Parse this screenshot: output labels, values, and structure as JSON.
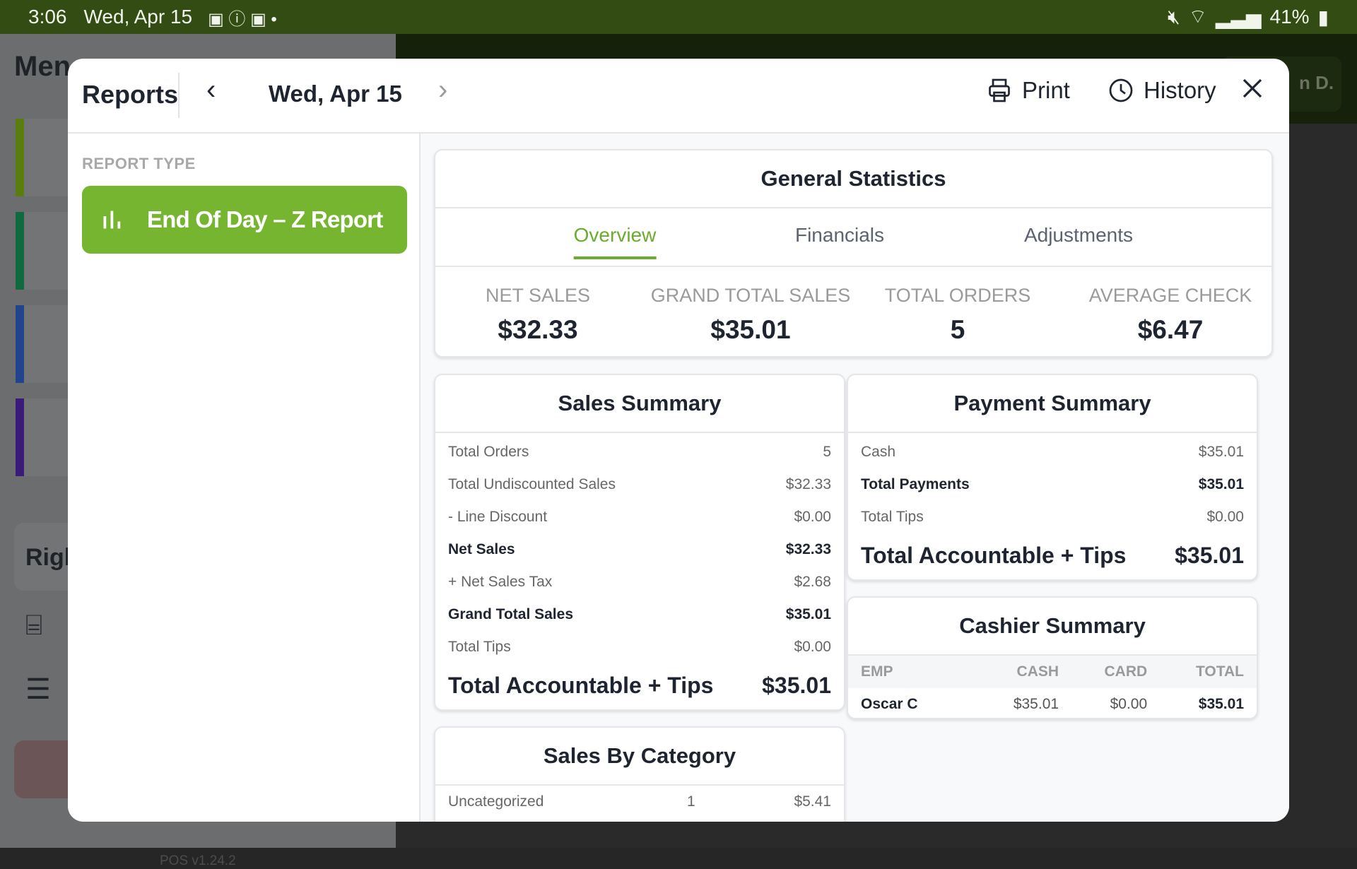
{
  "status_bar": {
    "time": "3:06",
    "date": "Wed, Apr 15",
    "battery": "41%"
  },
  "background": {
    "menu_title": "Men",
    "right_card": "Righ",
    "version": "POS v1.24.2",
    "user": "n D."
  },
  "header": {
    "title": "Reports",
    "date": "Wed, Apr 15",
    "print_label": "Print",
    "history_label": "History"
  },
  "sidebar": {
    "section_label": "REPORT TYPE",
    "selected_report": "End Of Day – Z Report"
  },
  "colors": {
    "accent": "#76b52f",
    "status_bar": "#324c14"
  },
  "general_statistics": {
    "title": "General Statistics",
    "tabs": [
      {
        "label": "Overview",
        "active": true
      },
      {
        "label": "Financials"
      },
      {
        "label": "Adjustments"
      }
    ],
    "stats": [
      {
        "label": "NET SALES",
        "value": "$32.33"
      },
      {
        "label": "GRAND TOTAL SALES",
        "value": "$35.01"
      },
      {
        "label": "TOTAL ORDERS",
        "value": "5"
      },
      {
        "label": "AVERAGE CHECK",
        "value": "$6.47"
      }
    ]
  },
  "sales_summary": {
    "title": "Sales Summary",
    "rows": [
      {
        "label": "Total Orders",
        "value": "5"
      },
      {
        "label": "Total Undiscounted Sales",
        "value": "$32.33"
      },
      {
        "label": "- Line Discount",
        "value": "$0.00"
      },
      {
        "label": "Net Sales",
        "value": "$32.33",
        "bold": true
      },
      {
        "label": "+ Net Sales Tax",
        "value": "$2.68"
      },
      {
        "label": "Grand Total Sales",
        "value": "$35.01",
        "bold": true
      },
      {
        "label": "Total Tips",
        "value": "$0.00"
      }
    ],
    "total": {
      "label": "Total Accountable + Tips",
      "value": "$35.01"
    }
  },
  "payment_summary": {
    "title": "Payment Summary",
    "rows": [
      {
        "label": "Cash",
        "value": "$35.01"
      },
      {
        "label": "Total Payments",
        "value": "$35.01",
        "bold": true
      },
      {
        "label": "Total Tips",
        "value": "$0.00"
      }
    ],
    "total": {
      "label": "Total Accountable + Tips",
      "value": "$35.01"
    }
  },
  "cashier_summary": {
    "title": "Cashier Summary",
    "columns": [
      "EMP",
      "CASH",
      "CARD",
      "TOTAL"
    ],
    "rows": [
      [
        "Oscar C",
        "$35.01",
        "$0.00",
        "$35.01"
      ]
    ]
  },
  "sales_by_category": {
    "title": "Sales By Category",
    "rows": [
      {
        "name": "Uncategorized",
        "qty": "1",
        "amount": "$5.41"
      }
    ]
  }
}
